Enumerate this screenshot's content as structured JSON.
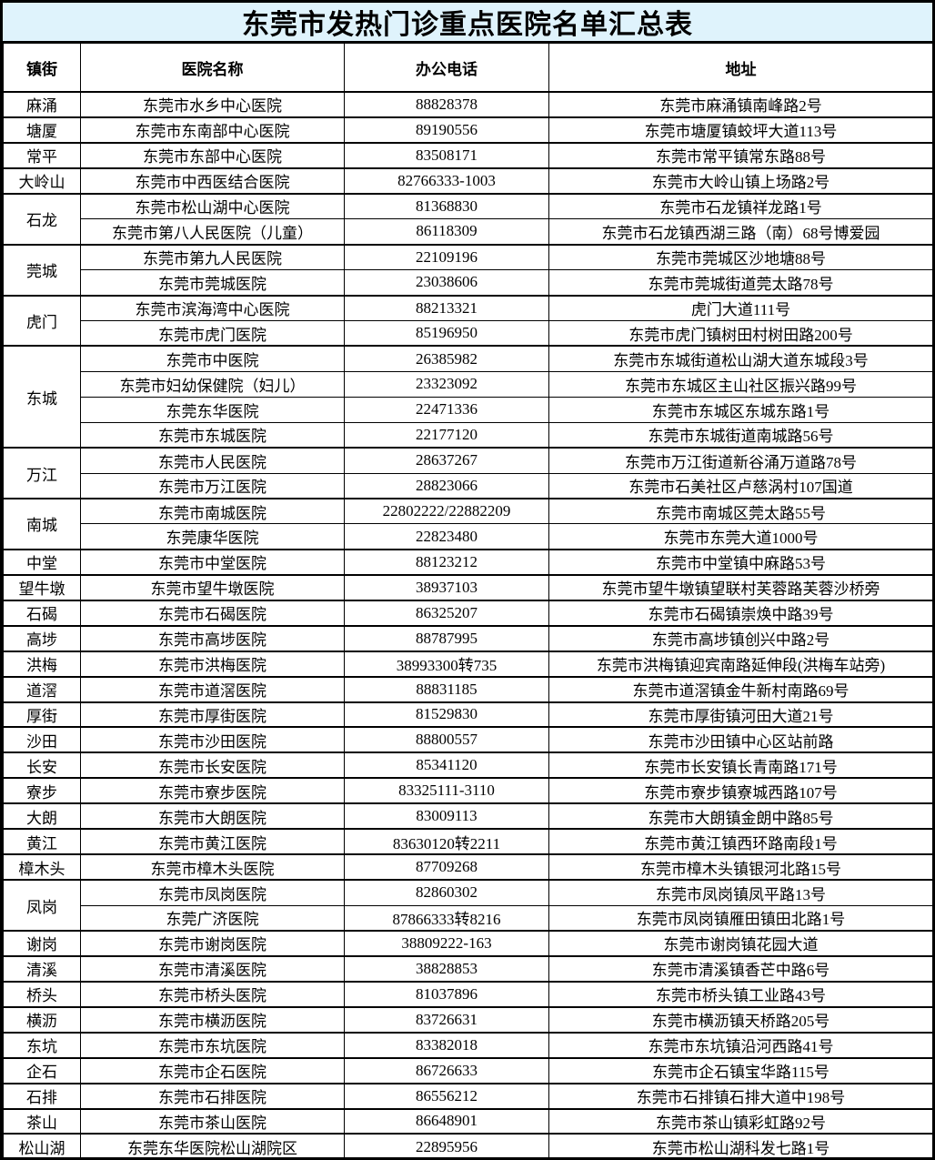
{
  "title": "东莞市发热门诊重点医院名单汇总表",
  "columns": [
    "镇街",
    "医院名称",
    "办公电话",
    "地址"
  ],
  "colors": {
    "title_bg": "#dff3fc",
    "border": "#000000",
    "text": "#000000",
    "cell_bg": "#ffffff"
  },
  "groups": [
    {
      "town": "麻涌",
      "rows": [
        [
          "东莞市水乡中心医院",
          "88828378",
          "东莞市麻涌镇南峰路2号"
        ]
      ]
    },
    {
      "town": "塘厦",
      "rows": [
        [
          "东莞市东南部中心医院",
          "89190556",
          "东莞市塘厦镇蛟坪大道113号"
        ]
      ]
    },
    {
      "town": "常平",
      "rows": [
        [
          "东莞市东部中心医院",
          "83508171",
          "东莞市常平镇常东路88号"
        ]
      ]
    },
    {
      "town": "大岭山",
      "rows": [
        [
          "东莞市中西医结合医院",
          "82766333-1003",
          "东莞市大岭山镇上场路2号"
        ]
      ]
    },
    {
      "town": "石龙",
      "rows": [
        [
          "东莞市松山湖中心医院",
          "81368830",
          "东莞市石龙镇祥龙路1号"
        ],
        [
          "东莞市第八人民医院（儿童）",
          "86118309",
          "东莞市石龙镇西湖三路（南）68号博爱园"
        ]
      ]
    },
    {
      "town": "莞城",
      "rows": [
        [
          "东莞市第九人民医院",
          "22109196",
          "东莞市莞城区沙地塘88号"
        ],
        [
          "东莞市莞城医院",
          "23038606",
          "东莞市莞城街道莞太路78号"
        ]
      ]
    },
    {
      "town": "虎门",
      "rows": [
        [
          "东莞市滨海湾中心医院",
          "88213321",
          "虎门大道111号"
        ],
        [
          "东莞市虎门医院",
          "85196950",
          "东莞市虎门镇树田村树田路200号"
        ]
      ]
    },
    {
      "town": "东城",
      "rows": [
        [
          "东莞市中医院",
          "26385982",
          "东莞市东城街道松山湖大道东城段3号"
        ],
        [
          "东莞市妇幼保健院（妇儿）",
          "23323092",
          "东莞市东城区主山社区振兴路99号"
        ],
        [
          "东莞东华医院",
          "22471336",
          "东莞市东城区东城东路1号"
        ],
        [
          "东莞市东城医院",
          "22177120",
          "东莞市东城街道南城路56号"
        ]
      ]
    },
    {
      "town": "万江",
      "rows": [
        [
          "东莞市人民医院",
          "28637267",
          "东莞市万江街道新谷涌万道路78号"
        ],
        [
          "东莞市万江医院",
          "28823066",
          "东莞市石美社区卢慈涡村107国道"
        ]
      ]
    },
    {
      "town": "南城",
      "rows": [
        [
          "东莞市南城医院",
          "22802222/22882209",
          "东莞市南城区莞太路55号"
        ],
        [
          "东莞康华医院",
          "22823480",
          "东莞市东莞大道1000号"
        ]
      ]
    },
    {
      "town": "中堂",
      "rows": [
        [
          "东莞市中堂医院",
          "88123212",
          "东莞市中堂镇中麻路53号"
        ]
      ]
    },
    {
      "town": "望牛墩",
      "rows": [
        [
          "东莞市望牛墩医院",
          "38937103",
          "东莞市望牛墩镇望联村芙蓉路芙蓉沙桥旁"
        ]
      ]
    },
    {
      "town": "石碣",
      "rows": [
        [
          "东莞市石碣医院",
          "86325207",
          "东莞市石碣镇崇焕中路39号"
        ]
      ]
    },
    {
      "town": "高埗",
      "rows": [
        [
          "东莞市高埗医院",
          "88787995",
          "东莞市高埗镇创兴中路2号"
        ]
      ]
    },
    {
      "town": "洪梅",
      "rows": [
        [
          "东莞市洪梅医院",
          "38993300转735",
          "东莞市洪梅镇迎宾南路延伸段(洪梅车站旁)"
        ]
      ]
    },
    {
      "town": "道滘",
      "rows": [
        [
          "东莞市道滘医院",
          "88831185",
          "东莞市道滘镇金牛新村南路69号"
        ]
      ]
    },
    {
      "town": "厚街",
      "rows": [
        [
          "东莞市厚街医院",
          "81529830",
          "东莞市厚街镇河田大道21号"
        ]
      ]
    },
    {
      "town": "沙田",
      "rows": [
        [
          "东莞市沙田医院",
          "88800557",
          "东莞市沙田镇中心区站前路"
        ]
      ]
    },
    {
      "town": "长安",
      "rows": [
        [
          "东莞市长安医院",
          "85341120",
          "东莞市长安镇长青南路171号"
        ]
      ]
    },
    {
      "town": "寮步",
      "rows": [
        [
          "东莞市寮步医院",
          "83325111-3110",
          "东莞市寮步镇寮城西路107号"
        ]
      ]
    },
    {
      "town": "大朗",
      "rows": [
        [
          "东莞市大朗医院",
          "83009113",
          "东莞市大朗镇金朗中路85号"
        ]
      ]
    },
    {
      "town": "黄江",
      "rows": [
        [
          "东莞市黄江医院",
          "83630120转2211",
          "东莞市黄江镇西环路南段1号"
        ]
      ]
    },
    {
      "town": "樟木头",
      "rows": [
        [
          "东莞市樟木头医院",
          "87709268",
          "东莞市樟木头镇银河北路15号"
        ]
      ]
    },
    {
      "town": "凤岗",
      "rows": [
        [
          "东莞市凤岗医院",
          "82860302",
          "东莞市凤岗镇凤平路13号"
        ],
        [
          "东莞广济医院",
          "87866333转8216",
          "东莞市凤岗镇雁田镇田北路1号"
        ]
      ]
    },
    {
      "town": "谢岗",
      "rows": [
        [
          "东莞市谢岗医院",
          "38809222-163",
          "东莞市谢岗镇花园大道"
        ]
      ]
    },
    {
      "town": "清溪",
      "rows": [
        [
          "东莞市清溪医院",
          "38828853",
          "东莞市清溪镇香芒中路6号"
        ]
      ]
    },
    {
      "town": "桥头",
      "rows": [
        [
          "东莞市桥头医院",
          "81037896",
          "东莞市桥头镇工业路43号"
        ]
      ]
    },
    {
      "town": "横沥",
      "rows": [
        [
          "东莞市横沥医院",
          "83726631",
          "东莞市横沥镇天桥路205号"
        ]
      ]
    },
    {
      "town": "东坑",
      "rows": [
        [
          "东莞市东坑医院",
          "83382018",
          "东莞市东坑镇沿河西路41号"
        ]
      ]
    },
    {
      "town": "企石",
      "rows": [
        [
          "东莞市企石医院",
          "86726633",
          "东莞市企石镇宝华路115号"
        ]
      ]
    },
    {
      "town": "石排",
      "rows": [
        [
          "东莞市石排医院",
          "86556212",
          "东莞市石排镇石排大道中198号"
        ]
      ]
    },
    {
      "town": "茶山",
      "rows": [
        [
          "东莞市茶山医院",
          "86648901",
          "东莞市茶山镇彩虹路92号"
        ]
      ]
    },
    {
      "town": "松山湖",
      "rows": [
        [
          "东莞东华医院松山湖院区",
          "22895956",
          "东莞市松山湖科发七路1号"
        ]
      ]
    }
  ]
}
